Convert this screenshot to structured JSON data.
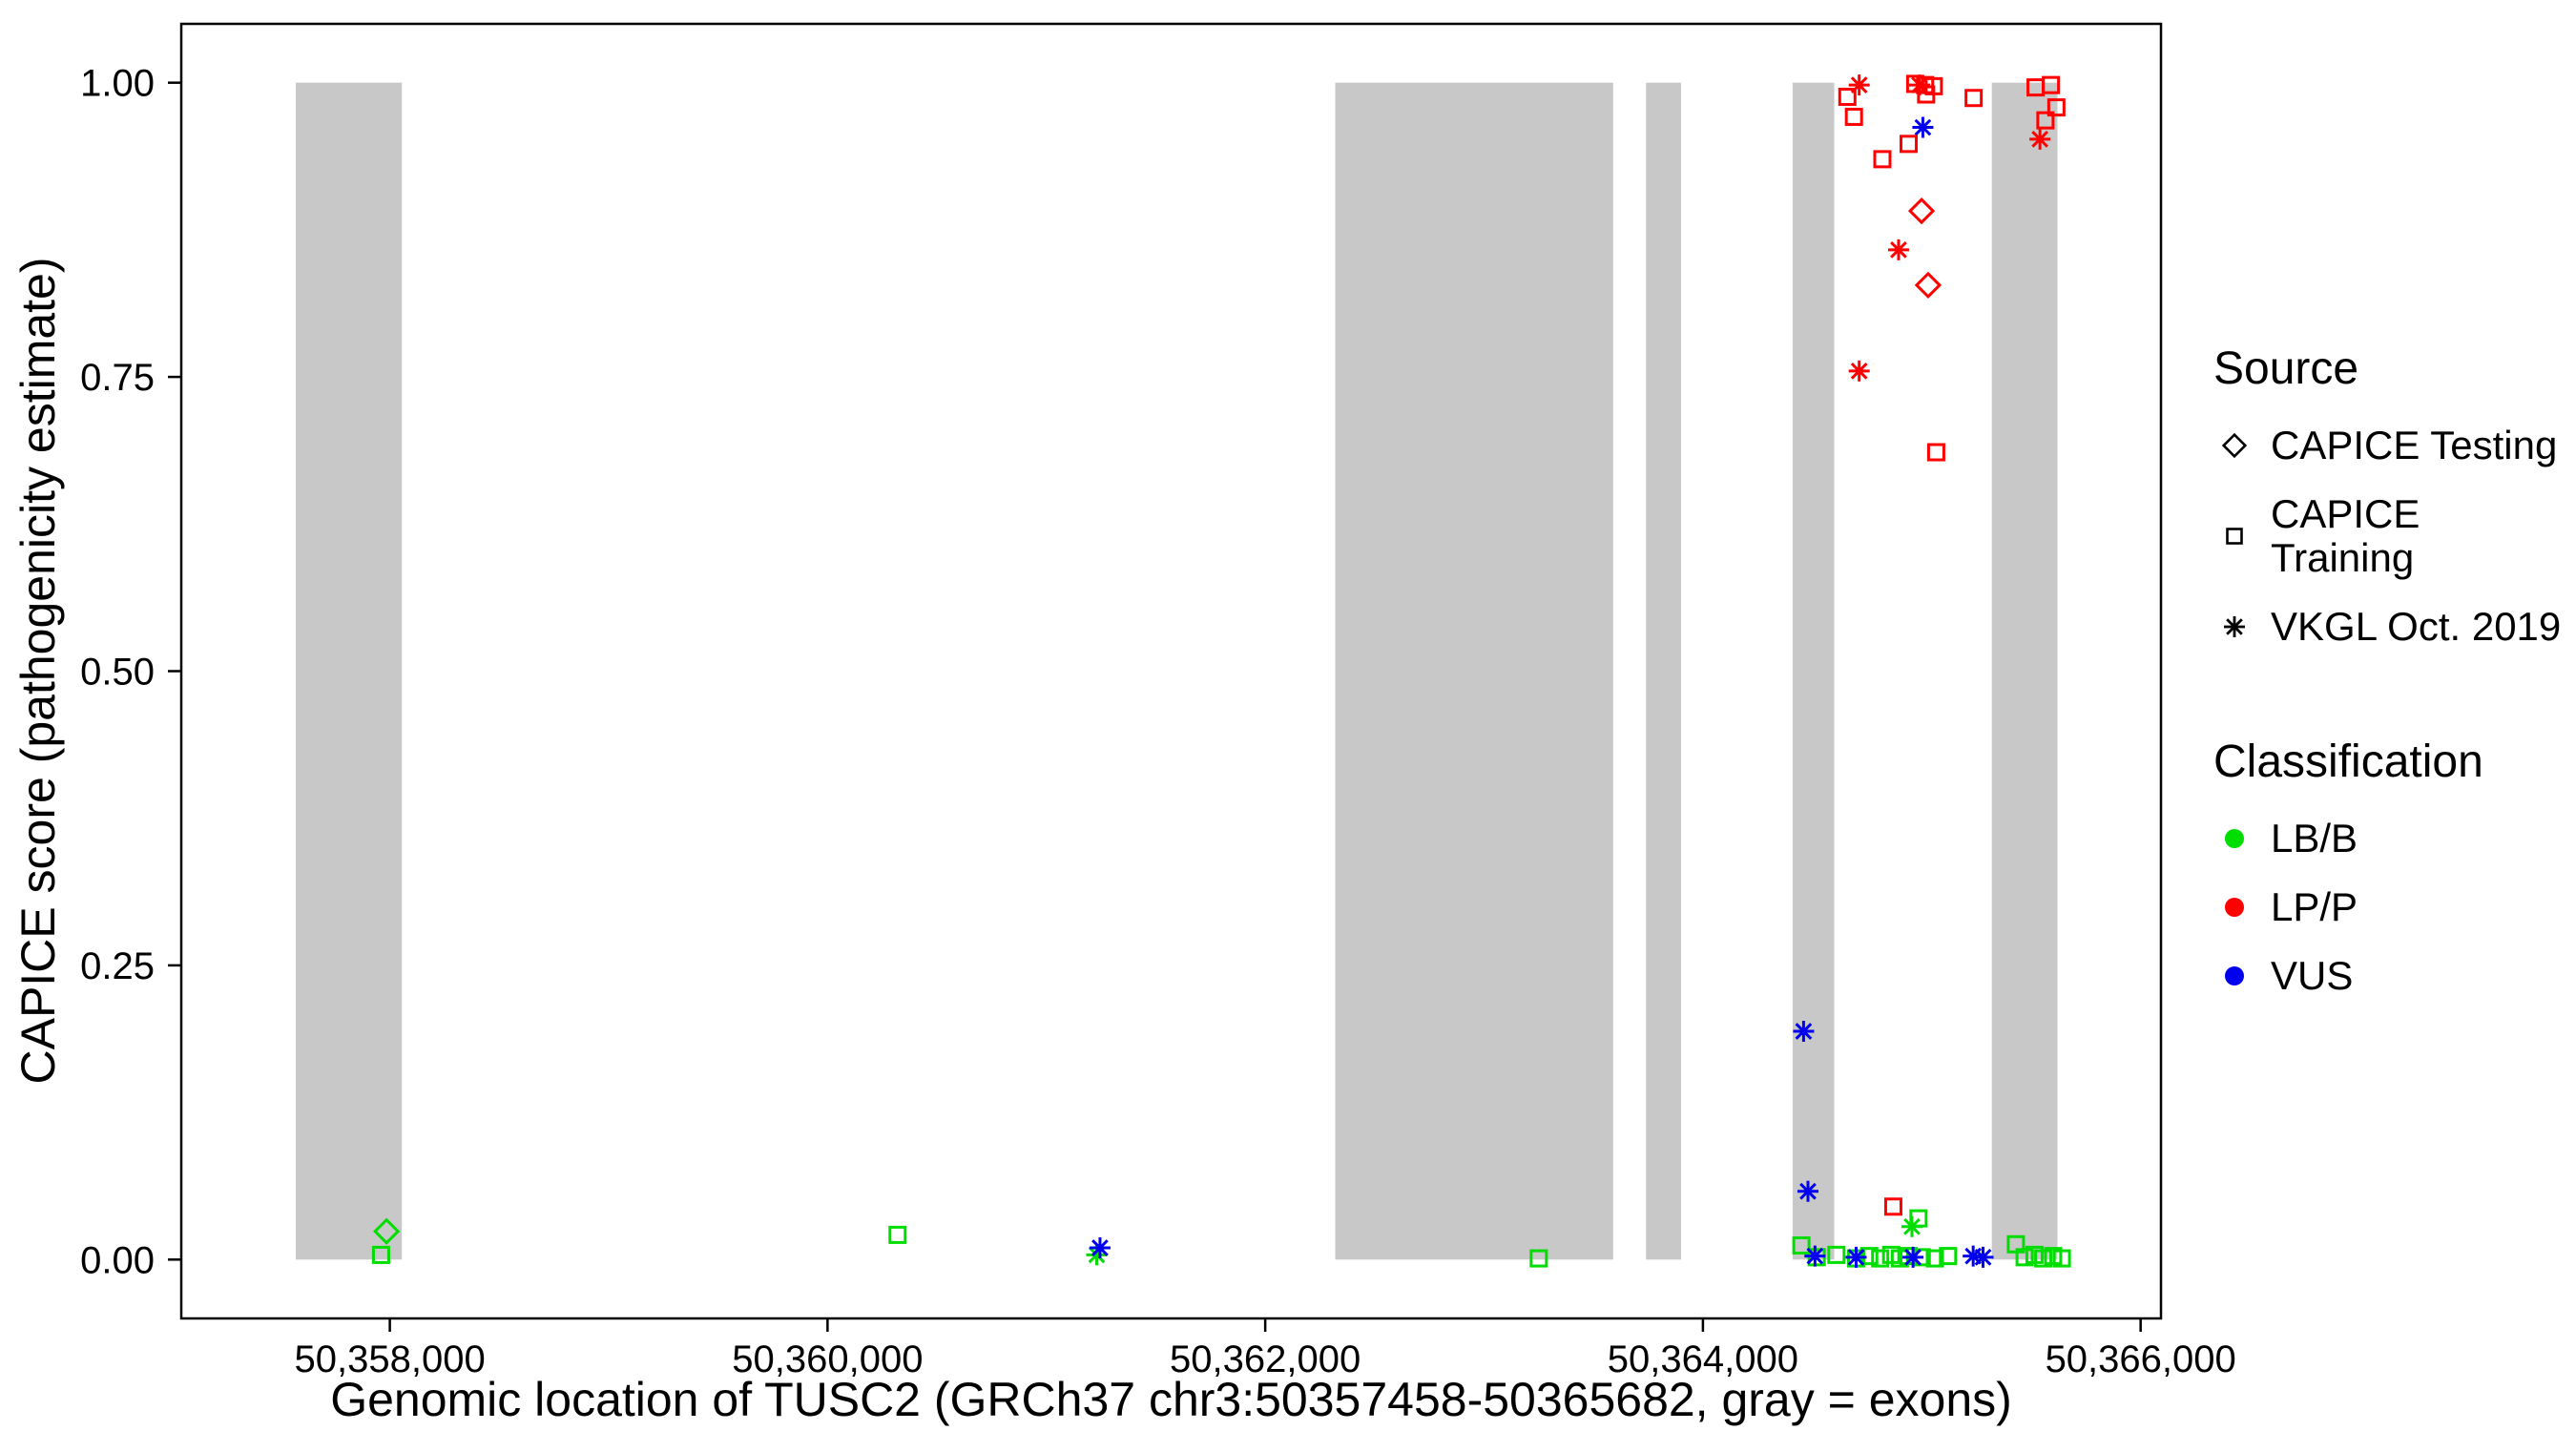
{
  "legend": {
    "source": {
      "title": "Source",
      "items": [
        {
          "label": "CAPICE Testing",
          "shape": "diamond"
        },
        {
          "label": "CAPICE Training",
          "shape": "square"
        },
        {
          "label": "VKGL Oct. 2019",
          "shape": "asterisk"
        }
      ]
    },
    "classification": {
      "title": "Classification",
      "items": [
        {
          "label": "LB/B",
          "color": "#00DD00"
        },
        {
          "label": "LP/P",
          "color": "#FF0000"
        },
        {
          "label": "VUS",
          "color": "#0000EE"
        }
      ]
    }
  },
  "chart_data": {
    "type": "scatter",
    "title": "",
    "xlabel": "Genomic location of TUSC2 (GRCh37 chr3:50357458-50365682, gray = exons)",
    "ylabel": "CAPICE score (pathogenicity estimate)",
    "xlim": [
      50357047,
      50366093
    ],
    "ylim": [
      -0.05,
      1.05
    ],
    "grid": "off",
    "legend_position": "right",
    "x_ticks": [
      {
        "v": 50358000,
        "label": "50,358,000"
      },
      {
        "v": 50360000,
        "label": "50,360,000"
      },
      {
        "v": 50362000,
        "label": "50,362,000"
      },
      {
        "v": 50364000,
        "label": "50,364,000"
      },
      {
        "v": 50366000,
        "label": "50,366,000"
      }
    ],
    "y_ticks": [
      {
        "v": 0,
        "label": "0.00"
      },
      {
        "v": 0.25,
        "label": "0.25"
      },
      {
        "v": 0.5,
        "label": "0.50"
      },
      {
        "v": 0.75,
        "label": "0.75"
      },
      {
        "v": 1,
        "label": "1.00"
      }
    ],
    "exon_color": "#C8C8C8",
    "exon_regions": [
      [
        50357570,
        50358055
      ],
      [
        50362320,
        50363590
      ],
      [
        50363740,
        50363900
      ],
      [
        50364410,
        50364600
      ],
      [
        50365320,
        50365620
      ]
    ],
    "shape_by_source": {
      "CAPICE Testing": "diamond",
      "CAPICE Training": "square",
      "VKGL Oct. 2019": "asterisk"
    },
    "color_by_classification": {
      "LB/B": "#00DD00",
      "LP/P": "#FF0000",
      "VUS": "#0000EE"
    },
    "points": [
      {
        "x": 50357985,
        "y": 0.024,
        "source": "CAPICE Testing",
        "classification": "LB/B"
      },
      {
        "x": 50357960,
        "y": 0.004,
        "source": "CAPICE Training",
        "classification": "LB/B"
      },
      {
        "x": 50360320,
        "y": 0.021,
        "source": "CAPICE Training",
        "classification": "LB/B"
      },
      {
        "x": 50361230,
        "y": 0.004,
        "source": "VKGL Oct. 2019",
        "classification": "LB/B"
      },
      {
        "x": 50361245,
        "y": 0.01,
        "source": "VKGL Oct. 2019",
        "classification": "VUS"
      },
      {
        "x": 50363250,
        "y": 0.001,
        "source": "CAPICE Training",
        "classification": "LB/B"
      },
      {
        "x": 50364450,
        "y": 0.012,
        "source": "CAPICE Training",
        "classification": "LB/B"
      },
      {
        "x": 50364520,
        "y": 0.002,
        "source": "CAPICE Training",
        "classification": "LB/B"
      },
      {
        "x": 50364610,
        "y": 0.004,
        "source": "CAPICE Training",
        "classification": "LB/B"
      },
      {
        "x": 50364700,
        "y": 0.001,
        "source": "CAPICE Training",
        "classification": "LB/B"
      },
      {
        "x": 50364760,
        "y": 0.003,
        "source": "CAPICE Training",
        "classification": "LB/B"
      },
      {
        "x": 50364810,
        "y": 0.001,
        "source": "CAPICE Training",
        "classification": "LB/B"
      },
      {
        "x": 50364860,
        "y": 0.004,
        "source": "CAPICE Training",
        "classification": "LB/B"
      },
      {
        "x": 50364900,
        "y": 0.001,
        "source": "CAPICE Training",
        "classification": "LB/B"
      },
      {
        "x": 50364940,
        "y": 0.003,
        "source": "CAPICE Training",
        "classification": "LB/B"
      },
      {
        "x": 50364985,
        "y": 0.035,
        "source": "CAPICE Training",
        "classification": "LB/B"
      },
      {
        "x": 50364955,
        "y": 0.028,
        "source": "VKGL Oct. 2019",
        "classification": "LB/B"
      },
      {
        "x": 50365000,
        "y": 0.002,
        "source": "CAPICE Training",
        "classification": "LB/B"
      },
      {
        "x": 50365060,
        "y": 0.001,
        "source": "CAPICE Training",
        "classification": "LB/B"
      },
      {
        "x": 50365120,
        "y": 0.003,
        "source": "CAPICE Training",
        "classification": "LB/B"
      },
      {
        "x": 50365430,
        "y": 0.013,
        "source": "CAPICE Training",
        "classification": "LB/B"
      },
      {
        "x": 50365470,
        "y": 0.002,
        "source": "CAPICE Training",
        "classification": "LB/B"
      },
      {
        "x": 50365515,
        "y": 0.004,
        "source": "CAPICE Training",
        "classification": "LB/B"
      },
      {
        "x": 50365555,
        "y": 0.001,
        "source": "CAPICE Training",
        "classification": "LB/B"
      },
      {
        "x": 50365600,
        "y": 0.003,
        "source": "CAPICE Training",
        "classification": "LB/B"
      },
      {
        "x": 50365640,
        "y": 0.001,
        "source": "CAPICE Training",
        "classification": "LB/B"
      },
      {
        "x": 50364460,
        "y": 0.194,
        "source": "VKGL Oct. 2019",
        "classification": "VUS"
      },
      {
        "x": 50364480,
        "y": 0.058,
        "source": "VKGL Oct. 2019",
        "classification": "VUS"
      },
      {
        "x": 50364512,
        "y": 0.003,
        "source": "VKGL Oct. 2019",
        "classification": "VUS"
      },
      {
        "x": 50364700,
        "y": 0.002,
        "source": "VKGL Oct. 2019",
        "classification": "VUS"
      },
      {
        "x": 50364960,
        "y": 0.002,
        "source": "VKGL Oct. 2019",
        "classification": "VUS"
      },
      {
        "x": 50365235,
        "y": 0.003,
        "source": "VKGL Oct. 2019",
        "classification": "VUS"
      },
      {
        "x": 50365280,
        "y": 0.002,
        "source": "VKGL Oct. 2019",
        "classification": "VUS"
      },
      {
        "x": 50365005,
        "y": 0.962,
        "source": "VKGL Oct. 2019",
        "classification": "VUS"
      },
      {
        "x": 50364714,
        "y": 0.998,
        "source": "VKGL Oct. 2019",
        "classification": "LP/P"
      },
      {
        "x": 50364660,
        "y": 0.988,
        "source": "CAPICE Training",
        "classification": "LP/P"
      },
      {
        "x": 50364690,
        "y": 0.971,
        "source": "CAPICE Training",
        "classification": "LP/P"
      },
      {
        "x": 50364820,
        "y": 0.935,
        "source": "CAPICE Training",
        "classification": "LP/P"
      },
      {
        "x": 50364940,
        "y": 0.948,
        "source": "CAPICE Training",
        "classification": "LP/P"
      },
      {
        "x": 50364970,
        "y": 0.999,
        "source": "CAPICE Training",
        "classification": "LP/P"
      },
      {
        "x": 50364990,
        "y": 0.998,
        "source": "VKGL Oct. 2019",
        "classification": "LP/P"
      },
      {
        "x": 50365015,
        "y": 0.998,
        "source": "CAPICE Training",
        "classification": "LP/P"
      },
      {
        "x": 50365055,
        "y": 0.997,
        "source": "CAPICE Training",
        "classification": "LP/P"
      },
      {
        "x": 50365020,
        "y": 0.99,
        "source": "CAPICE Training",
        "classification": "LP/P"
      },
      {
        "x": 50364999,
        "y": 0.891,
        "source": "CAPICE Testing",
        "classification": "LP/P"
      },
      {
        "x": 50364894,
        "y": 0.858,
        "source": "VKGL Oct. 2019",
        "classification": "LP/P"
      },
      {
        "x": 50365029,
        "y": 0.828,
        "source": "CAPICE Testing",
        "classification": "LP/P"
      },
      {
        "x": 50364714,
        "y": 0.755,
        "source": "VKGL Oct. 2019",
        "classification": "LP/P"
      },
      {
        "x": 50365066,
        "y": 0.686,
        "source": "CAPICE Training",
        "classification": "LP/P"
      },
      {
        "x": 50365237,
        "y": 0.987,
        "source": "CAPICE Training",
        "classification": "LP/P"
      },
      {
        "x": 50364870,
        "y": 0.045,
        "source": "CAPICE Training",
        "classification": "LP/P"
      },
      {
        "x": 50365520,
        "y": 0.996,
        "source": "CAPICE Training",
        "classification": "LP/P"
      },
      {
        "x": 50365590,
        "y": 0.998,
        "source": "CAPICE Training",
        "classification": "LP/P"
      },
      {
        "x": 50365615,
        "y": 0.979,
        "source": "CAPICE Training",
        "classification": "LP/P"
      },
      {
        "x": 50365565,
        "y": 0.968,
        "source": "CAPICE Training",
        "classification": "LP/P"
      },
      {
        "x": 50365540,
        "y": 0.952,
        "source": "VKGL Oct. 2019",
        "classification": "LP/P"
      }
    ]
  }
}
